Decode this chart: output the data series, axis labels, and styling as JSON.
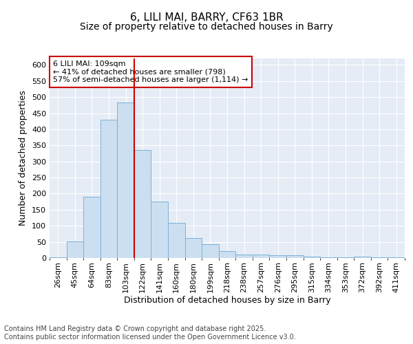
{
  "title1": "6, LILI MAI, BARRY, CF63 1BR",
  "title2": "Size of property relative to detached houses in Barry",
  "xlabel": "Distribution of detached houses by size in Barry",
  "ylabel": "Number of detached properties",
  "categories": [
    "26sqm",
    "45sqm",
    "64sqm",
    "83sqm",
    "103sqm",
    "122sqm",
    "141sqm",
    "160sqm",
    "180sqm",
    "199sqm",
    "218sqm",
    "238sqm",
    "257sqm",
    "276sqm",
    "295sqm",
    "315sqm",
    "334sqm",
    "353sqm",
    "372sqm",
    "392sqm",
    "411sqm"
  ],
  "values": [
    3,
    51,
    190,
    430,
    483,
    336,
    175,
    110,
    62,
    43,
    22,
    11,
    10,
    8,
    8,
    4,
    2,
    2,
    4,
    2,
    2
  ],
  "bar_color": "#ccdff0",
  "bar_edge_color": "#7ab0d8",
  "background_color": "#e6ecf5",
  "grid_color": "#ffffff",
  "vline_x_index": 4.5,
  "vline_color": "#cc0000",
  "annotation_text": "6 LILI MAI: 109sqm\n← 41% of detached houses are smaller (798)\n57% of semi-detached houses are larger (1,114) →",
  "annotation_box_facecolor": "#ffffff",
  "annotation_box_edgecolor": "#cc0000",
  "footer": "Contains HM Land Registry data © Crown copyright and database right 2025.\nContains public sector information licensed under the Open Government Licence v3.0.",
  "ylim": [
    0,
    620
  ],
  "yticks": [
    0,
    50,
    100,
    150,
    200,
    250,
    300,
    350,
    400,
    450,
    500,
    550,
    600
  ],
  "title1_fontsize": 11,
  "title2_fontsize": 10,
  "axis_label_fontsize": 9,
  "tick_fontsize": 8,
  "annotation_fontsize": 8,
  "footer_fontsize": 7
}
